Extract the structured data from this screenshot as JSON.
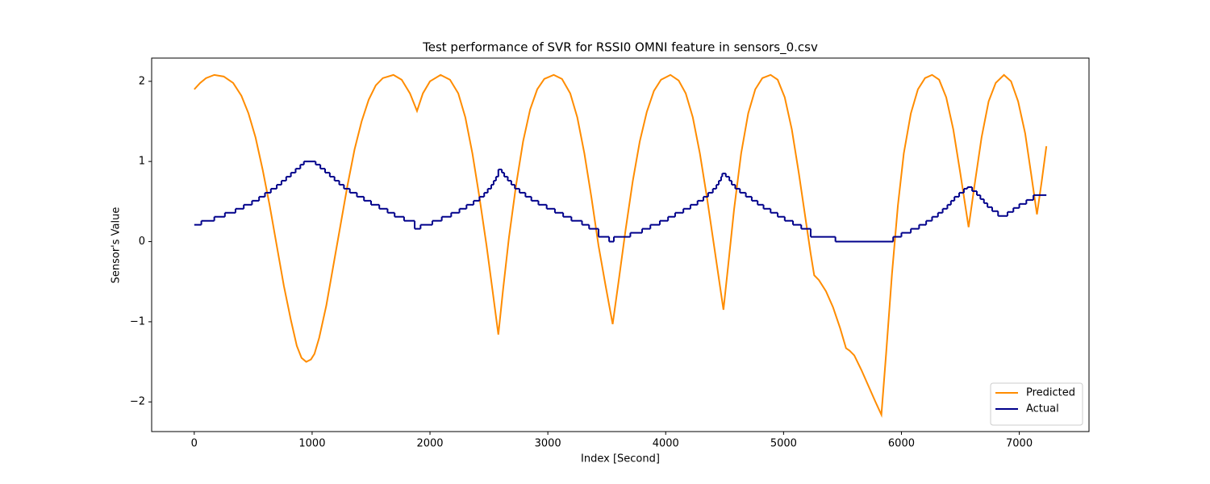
{
  "chart_data": {
    "type": "line",
    "title": "Test performance of SVR for RSSI0 OMNI feature in sensors_0.csv",
    "x_label": "Index [Second]",
    "y_label": "Sensor's Value",
    "xlim": [
      -361.5,
      7591.5
    ],
    "ylim": [
      -2.37,
      2.29
    ],
    "xticks": [
      0,
      1000,
      2000,
      3000,
      4000,
      5000,
      6000,
      7000
    ],
    "yticks": [
      {
        "value": -2,
        "label": "−2"
      },
      {
        "value": -1,
        "label": "−1"
      },
      0,
      1,
      2
    ],
    "grid": false,
    "legend": "lower right",
    "series": [
      {
        "name": "Predicted",
        "color": "#ff8c00",
        "x": [
          0,
          50,
          100,
          170,
          250,
          330,
          400,
          460,
          520,
          580,
          640,
          700,
          760,
          820,
          870,
          910,
          950,
          990,
          1020,
          1060,
          1120,
          1180,
          1240,
          1300,
          1360,
          1420,
          1480,
          1540,
          1600,
          1690,
          1760,
          1830,
          1890,
          1940,
          2000,
          2090,
          2170,
          2240,
          2300,
          2360,
          2420,
          2480,
          2530,
          2580,
          2620,
          2670,
          2730,
          2790,
          2850,
          2910,
          2970,
          3050,
          3120,
          3190,
          3250,
          3310,
          3370,
          3430,
          3490,
          3550,
          3600,
          3660,
          3720,
          3780,
          3840,
          3900,
          3960,
          4040,
          4110,
          4170,
          4230,
          4290,
          4350,
          4410,
          4460,
          4490,
          4530,
          4580,
          4640,
          4700,
          4760,
          4820,
          4890,
          4950,
          5010,
          5070,
          5130,
          5190,
          5230,
          5260,
          5300,
          5360,
          5420,
          5480,
          5530,
          5560,
          5600,
          5660,
          5720,
          5780,
          5830,
          5870,
          5920,
          5970,
          6020,
          6080,
          6140,
          6200,
          6260,
          6320,
          6380,
          6440,
          6500,
          6570,
          6620,
          6680,
          6740,
          6800,
          6870,
          6930,
          6990,
          7050,
          7100,
          7150,
          7190,
          7230
        ],
        "values": [
          1.9,
          1.98,
          2.04,
          2.08,
          2.06,
          1.98,
          1.82,
          1.6,
          1.3,
          0.9,
          0.45,
          -0.05,
          -0.55,
          -0.98,
          -1.3,
          -1.45,
          -1.5,
          -1.47,
          -1.4,
          -1.2,
          -0.8,
          -0.3,
          0.2,
          0.7,
          1.15,
          1.5,
          1.77,
          1.95,
          2.04,
          2.08,
          2.02,
          1.85,
          1.63,
          1.85,
          2.0,
          2.08,
          2.02,
          1.85,
          1.55,
          1.1,
          0.55,
          -0.05,
          -0.6,
          -1.16,
          -0.6,
          0.05,
          0.7,
          1.25,
          1.65,
          1.9,
          2.03,
          2.08,
          2.03,
          1.85,
          1.55,
          1.1,
          0.55,
          -0.05,
          -0.55,
          -1.03,
          -0.5,
          0.15,
          0.75,
          1.25,
          1.62,
          1.88,
          2.02,
          2.08,
          2.01,
          1.85,
          1.55,
          1.1,
          0.55,
          -0.05,
          -0.55,
          -0.85,
          -0.3,
          0.4,
          1.1,
          1.6,
          1.9,
          2.04,
          2.08,
          2.02,
          1.8,
          1.4,
          0.85,
          0.25,
          -0.15,
          -0.42,
          -0.48,
          -0.62,
          -0.82,
          -1.08,
          -1.33,
          -1.36,
          -1.42,
          -1.6,
          -1.8,
          -2.0,
          -2.16,
          -1.4,
          -0.4,
          0.45,
          1.1,
          1.6,
          1.9,
          2.04,
          2.08,
          2.02,
          1.8,
          1.4,
          0.85,
          0.18,
          0.7,
          1.3,
          1.75,
          1.98,
          2.08,
          2.0,
          1.75,
          1.35,
          0.85,
          0.34,
          0.75,
          1.19
        ]
      },
      {
        "name": "Actual",
        "color": "#00008b",
        "step": "post",
        "x": [
          0,
          60,
          170,
          260,
          350,
          420,
          490,
          550,
          600,
          650,
          700,
          740,
          780,
          820,
          860,
          900,
          930,
          1030,
          1070,
          1110,
          1150,
          1190,
          1230,
          1270,
          1320,
          1380,
          1440,
          1500,
          1570,
          1640,
          1700,
          1780,
          1870,
          1920,
          2020,
          2100,
          2180,
          2250,
          2310,
          2370,
          2420,
          2460,
          2490,
          2520,
          2540,
          2560,
          2580,
          2610,
          2630,
          2660,
          2690,
          2720,
          2760,
          2810,
          2860,
          2920,
          2990,
          3060,
          3130,
          3200,
          3290,
          3350,
          3430,
          3520,
          3560,
          3700,
          3800,
          3870,
          3950,
          4020,
          4080,
          4150,
          4210,
          4270,
          4320,
          4360,
          4400,
          4430,
          4450,
          4470,
          4480,
          4510,
          4540,
          4560,
          4590,
          4630,
          4680,
          4730,
          4780,
          4830,
          4890,
          4950,
          5010,
          5080,
          5150,
          5230,
          5440,
          5930,
          6000,
          6080,
          6150,
          6210,
          6260,
          6310,
          6350,
          6390,
          6420,
          6450,
          6490,
          6530,
          6560,
          6600,
          6640,
          6670,
          6700,
          6730,
          6770,
          6820,
          6900,
          6950,
          7000,
          7060,
          7120,
          7230
        ],
        "values": [
          0.21,
          0.26,
          0.31,
          0.36,
          0.41,
          0.46,
          0.51,
          0.56,
          0.61,
          0.66,
          0.71,
          0.76,
          0.81,
          0.86,
          0.91,
          0.96,
          1.0,
          0.96,
          0.91,
          0.86,
          0.81,
          0.76,
          0.71,
          0.66,
          0.61,
          0.56,
          0.51,
          0.46,
          0.41,
          0.36,
          0.31,
          0.26,
          0.16,
          0.21,
          0.26,
          0.31,
          0.36,
          0.41,
          0.46,
          0.51,
          0.56,
          0.61,
          0.66,
          0.71,
          0.76,
          0.81,
          0.9,
          0.86,
          0.81,
          0.76,
          0.71,
          0.66,
          0.61,
          0.56,
          0.51,
          0.46,
          0.41,
          0.36,
          0.31,
          0.26,
          0.21,
          0.16,
          0.06,
          0.0,
          0.06,
          0.11,
          0.16,
          0.21,
          0.26,
          0.31,
          0.36,
          0.41,
          0.46,
          0.51,
          0.56,
          0.61,
          0.66,
          0.71,
          0.76,
          0.81,
          0.85,
          0.81,
          0.76,
          0.71,
          0.66,
          0.61,
          0.56,
          0.51,
          0.46,
          0.41,
          0.36,
          0.31,
          0.26,
          0.21,
          0.16,
          0.06,
          0.0,
          0.06,
          0.11,
          0.16,
          0.21,
          0.26,
          0.31,
          0.36,
          0.41,
          0.46,
          0.51,
          0.56,
          0.61,
          0.66,
          0.68,
          0.63,
          0.58,
          0.53,
          0.48,
          0.43,
          0.38,
          0.32,
          0.37,
          0.42,
          0.47,
          0.52,
          0.58,
          0.58
        ]
      }
    ]
  }
}
